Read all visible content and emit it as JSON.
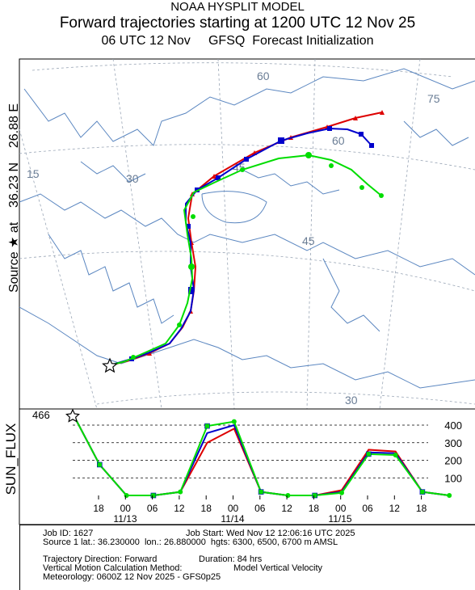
{
  "header": {
    "line1": "NOAA HYSPLIT MODEL",
    "line2": "Forward trajectories starting at 1200 UTC 12 Nov 25",
    "line3": "06 UTC 12 Nov     GFSQ  Forecast Initialization"
  },
  "side_label": {
    "before_star": "Source",
    "star": "★",
    "after_star": " at    36.23 N    26.88 E"
  },
  "map": {
    "latitude_labels": [
      "60",
      "45",
      "30"
    ],
    "longitude_labels": [
      "75",
      "60",
      "45",
      "30",
      "15"
    ]
  },
  "chart_data": {
    "type": "line",
    "ylabel": "SUN_FLUX",
    "yticks": [
      100,
      200,
      300,
      400
    ],
    "hour_ticks": [
      "18",
      "00",
      "06",
      "12",
      "18",
      "00",
      "06",
      "12",
      "18",
      "00",
      "06",
      "12",
      "18"
    ],
    "date_labels": [
      "11/13",
      "11/14",
      "11/15"
    ],
    "start_value_label": "466",
    "time_hours": [
      0,
      6,
      12,
      18,
      24,
      30,
      36,
      42,
      48,
      54,
      60,
      66,
      72,
      78,
      84
    ],
    "series": [
      {
        "color": "#dd0000",
        "values": [
          466,
          175,
          0,
          0,
          20,
          300,
          380,
          20,
          0,
          0,
          30,
          260,
          250,
          20,
          0
        ]
      },
      {
        "color": "#0000cc",
        "values": [
          466,
          175,
          0,
          0,
          20,
          355,
          400,
          20,
          0,
          0,
          20,
          245,
          240,
          20,
          0
        ]
      },
      {
        "color": "#00dd00",
        "values": [
          466,
          175,
          0,
          0,
          20,
          395,
          420,
          20,
          0,
          0,
          15,
          235,
          230,
          20,
          0
        ]
      }
    ]
  },
  "footer": {
    "job_id": "Job ID: 1627",
    "job_start": "Job Start: Wed Nov 12 12:06:16 UTC 2025",
    "source": "Source 1 lat.: 36.230000  lon.: 26.880000  hgts: 6300, 6500, 6700 m AMSL",
    "direction": "Trajectory Direction: Forward",
    "duration": "Duration: 84 hrs",
    "vertical_method": "Vertical Motion Calculation Method:",
    "vertical_model": "Model Vertical Velocity",
    "meteorology": "Meteorology: 0600Z 12 Nov 2025 - GFS0p25"
  },
  "colors": {
    "trajectory_1": "#dd0000",
    "trajectory_2": "#0000cc",
    "trajectory_3": "#00dd00",
    "coastline": "#5a86c0",
    "grid": "#9aa6b6"
  }
}
